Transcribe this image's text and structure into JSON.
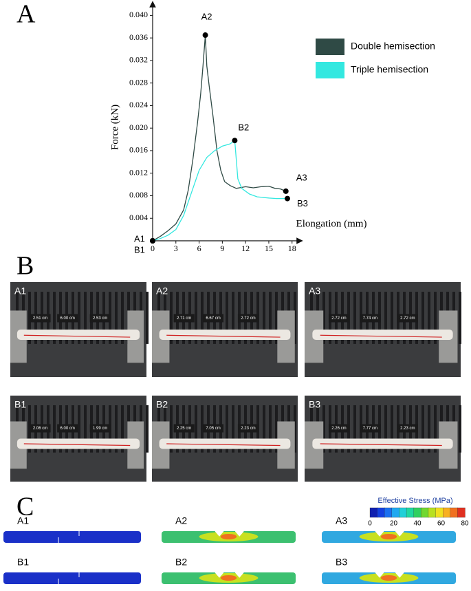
{
  "chart_data": {
    "type": "line",
    "panel_label": "A",
    "x_label": "Elongation (mm)",
    "y_label": "Force (kN)",
    "xlim": [
      0,
      19
    ],
    "ylim": [
      0,
      0.042
    ],
    "xticks": [
      0,
      3,
      6,
      9,
      12,
      15,
      18
    ],
    "yticks": [
      0.004,
      0.008,
      0.012,
      0.016,
      {
        "value": 0.02,
        "label": "0.020"
      },
      0.024,
      0.028,
      0.032,
      0.036,
      {
        "value": 0.04,
        "label": "0.040"
      }
    ],
    "series": [
      {
        "name": "Double hemisection",
        "color": "#2f4a45",
        "x": [
          0,
          1,
          2,
          3,
          4,
          4.6,
          5.2,
          5.8,
          6.2,
          6.5,
          6.8,
          7.0,
          7.3,
          7.8,
          8.3,
          8.8,
          9.3,
          10,
          10.8,
          12,
          13,
          14,
          15,
          15.8,
          16.5,
          17.2
        ],
        "values": [
          0,
          0.0008,
          0.0018,
          0.003,
          0.0055,
          0.009,
          0.0145,
          0.021,
          0.026,
          0.031,
          0.0365,
          0.031,
          0.0275,
          0.022,
          0.016,
          0.0125,
          0.0105,
          0.0098,
          0.0093,
          0.0096,
          0.0094,
          0.0096,
          0.0097,
          0.0093,
          0.0092,
          0.0088
        ]
      },
      {
        "name": "Triple hemisection",
        "color": "#33e8e0",
        "x": [
          0,
          1,
          2,
          3,
          4,
          5,
          6,
          7,
          8,
          9,
          10,
          10.6,
          11.0,
          11.5,
          12.5,
          13.5,
          15,
          16,
          17.4
        ],
        "values": [
          0,
          0.0004,
          0.001,
          0.002,
          0.0045,
          0.0085,
          0.0125,
          0.0148,
          0.016,
          0.0168,
          0.0172,
          0.0178,
          0.011,
          0.0093,
          0.0083,
          0.0078,
          0.0076,
          0.0075,
          0.0075
        ]
      }
    ],
    "points": [
      {
        "label": "A1",
        "x": 0,
        "y": 0
      },
      {
        "label": "B1",
        "x": 0,
        "y": 0
      },
      {
        "label": "A2",
        "x": 6.8,
        "y": 0.0365
      },
      {
        "label": "B2",
        "x": 10.6,
        "y": 0.0178
      },
      {
        "label": "A3",
        "x": 17.2,
        "y": 0.0088
      },
      {
        "label": "B3",
        "x": 17.4,
        "y": 0.0075
      }
    ]
  },
  "photos": {
    "panel_label": "B",
    "items": [
      {
        "label": "A1",
        "measurements": [
          "2.51 cm",
          "6.00 cm",
          "2.53 cm"
        ]
      },
      {
        "label": "A2",
        "measurements": [
          "2.71 cm",
          "6.67 cm",
          "2.72 cm"
        ]
      },
      {
        "label": "A3",
        "measurements": [
          "2.72 cm",
          "7.74 cm",
          "2.72 cm"
        ]
      },
      {
        "label": "B1",
        "measurements": [
          "2.06 cm",
          "6.00 cm",
          "1.99 cm"
        ]
      },
      {
        "label": "B2",
        "measurements": [
          "2.25 cm",
          "7.05 cm",
          "2.23 cm"
        ]
      },
      {
        "label": "B3",
        "measurements": [
          "2.26 cm",
          "7.77 cm",
          "2.23 cm"
        ]
      }
    ]
  },
  "fea": {
    "panel_label": "C",
    "colorbar_title": "Effective Stress (MPa)",
    "colorbar_ticks": [
      0,
      20,
      40,
      60,
      80
    ],
    "models": [
      {
        "label": "A1"
      },
      {
        "label": "A2"
      },
      {
        "label": "A3"
      },
      {
        "label": "B1"
      },
      {
        "label": "B2"
      },
      {
        "label": "B3"
      }
    ]
  }
}
